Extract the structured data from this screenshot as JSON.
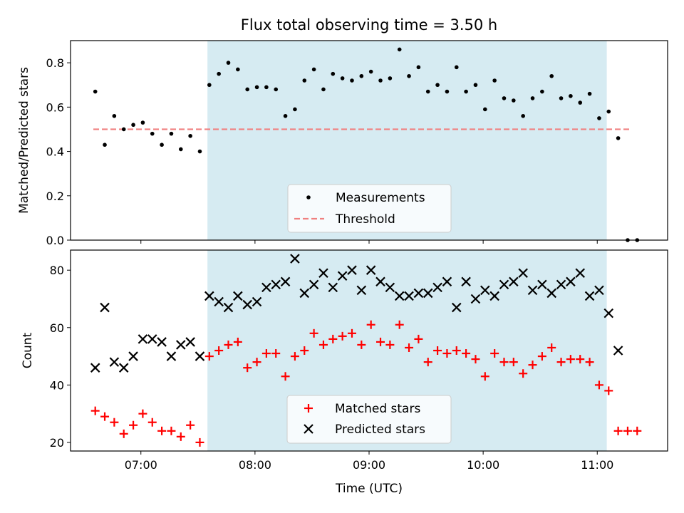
{
  "title": "Flux total observing time = 3.50 h",
  "chart_data": [
    {
      "type": "scatter",
      "panel": "top",
      "ylabel": "Matched/Predicted stars",
      "xlabel": "",
      "ylim": [
        0,
        0.9
      ],
      "yticks": [
        0.0,
        0.2,
        0.4,
        0.6,
        0.8
      ],
      "ytick_labels": [
        "0.0",
        "0.2",
        "0.4",
        "0.6",
        "0.8"
      ],
      "threshold": {
        "name": "Threshold",
        "y": 0.5,
        "x_from": "06:35",
        "x_to": "11:18",
        "color": "#f08080"
      },
      "shaded_span": {
        "from": "07:35",
        "to": "11:05",
        "color": "#add8e6"
      },
      "legend_position": "lower center",
      "series": [
        {
          "name": "Measurements",
          "color": "#000000",
          "x": [
            "06:36",
            "06:41",
            "06:46",
            "06:51",
            "06:56",
            "07:01",
            "07:06",
            "07:11",
            "07:16",
            "07:21",
            "07:26",
            "07:31",
            "07:36",
            "07:41",
            "07:46",
            "07:51",
            "07:56",
            "08:01",
            "08:06",
            "08:11",
            "08:16",
            "08:21",
            "08:26",
            "08:31",
            "08:36",
            "08:41",
            "08:46",
            "08:51",
            "08:56",
            "09:01",
            "09:06",
            "09:11",
            "09:16",
            "09:21",
            "09:26",
            "09:31",
            "09:36",
            "09:41",
            "09:46",
            "09:51",
            "09:56",
            "10:01",
            "10:06",
            "10:11",
            "10:16",
            "10:21",
            "10:26",
            "10:31",
            "10:36",
            "10:41",
            "10:46",
            "10:51",
            "10:56",
            "11:01",
            "11:06",
            "11:11",
            "11:16",
            "11:21"
          ],
          "y": [
            0.67,
            0.43,
            0.56,
            0.5,
            0.52,
            0.53,
            0.48,
            0.43,
            0.48,
            0.41,
            0.47,
            0.4,
            0.7,
            0.75,
            0.8,
            0.77,
            0.68,
            0.69,
            0.69,
            0.68,
            0.56,
            0.59,
            0.72,
            0.77,
            0.68,
            0.75,
            0.73,
            0.72,
            0.74,
            0.76,
            0.72,
            0.73,
            0.86,
            0.74,
            0.78,
            0.67,
            0.7,
            0.67,
            0.78,
            0.67,
            0.7,
            0.59,
            0.72,
            0.64,
            0.63,
            0.56,
            0.64,
            0.67,
            0.74,
            0.64,
            0.65,
            0.62,
            0.66,
            0.55,
            0.58,
            0.46,
            0.0,
            0.0
          ]
        }
      ]
    },
    {
      "type": "scatter",
      "panel": "bottom",
      "xlabel": "Time (UTC)",
      "ylabel": "Count",
      "ylim": [
        17,
        87
      ],
      "yticks": [
        20,
        40,
        60,
        80
      ],
      "ytick_labels": [
        "20",
        "40",
        "60",
        "80"
      ],
      "xlim": [
        "06:23",
        "11:37"
      ],
      "xticks": [
        "07:00",
        "08:00",
        "09:00",
        "10:00",
        "11:00"
      ],
      "xtick_labels": [
        "07:00",
        "08:00",
        "09:00",
        "10:00",
        "11:00"
      ],
      "shaded_span": {
        "from": "07:35",
        "to": "11:05",
        "color": "#add8e6"
      },
      "legend_position": "lower center",
      "series": [
        {
          "name": "Matched stars",
          "marker": "plus",
          "color": "#ff0000",
          "x": [
            "06:36",
            "06:41",
            "06:46",
            "06:51",
            "06:56",
            "07:01",
            "07:06",
            "07:11",
            "07:16",
            "07:21",
            "07:26",
            "07:31",
            "07:36",
            "07:41",
            "07:46",
            "07:51",
            "07:56",
            "08:01",
            "08:06",
            "08:11",
            "08:16",
            "08:21",
            "08:26",
            "08:31",
            "08:36",
            "08:41",
            "08:46",
            "08:51",
            "08:56",
            "09:01",
            "09:06",
            "09:11",
            "09:16",
            "09:21",
            "09:26",
            "09:31",
            "09:36",
            "09:41",
            "09:46",
            "09:51",
            "09:56",
            "10:01",
            "10:06",
            "10:11",
            "10:16",
            "10:21",
            "10:26",
            "10:31",
            "10:36",
            "10:41",
            "10:46",
            "10:51",
            "10:56",
            "11:01",
            "11:06",
            "11:11",
            "11:16",
            "11:21"
          ],
          "y": [
            31,
            29,
            27,
            23,
            26,
            30,
            27,
            24,
            24,
            22,
            26,
            20,
            50,
            52,
            54,
            55,
            46,
            48,
            51,
            51,
            43,
            50,
            52,
            58,
            54,
            56,
            57,
            58,
            54,
            61,
            55,
            54,
            61,
            53,
            56,
            48,
            52,
            51,
            52,
            51,
            49,
            43,
            51,
            48,
            48,
            44,
            47,
            50,
            53,
            48,
            49,
            49,
            48,
            40,
            38,
            24,
            24,
            24
          ]
        },
        {
          "name": "Predicted stars",
          "marker": "x",
          "color": "#000000",
          "x": [
            "06:36",
            "06:41",
            "06:46",
            "06:51",
            "06:56",
            "07:01",
            "07:06",
            "07:11",
            "07:16",
            "07:21",
            "07:26",
            "07:31",
            "07:36",
            "07:41",
            "07:46",
            "07:51",
            "07:56",
            "08:01",
            "08:06",
            "08:11",
            "08:16",
            "08:21",
            "08:26",
            "08:31",
            "08:36",
            "08:41",
            "08:46",
            "08:51",
            "08:56",
            "09:01",
            "09:06",
            "09:11",
            "09:16",
            "09:21",
            "09:26",
            "09:31",
            "09:36",
            "09:41",
            "09:46",
            "09:51",
            "09:56",
            "10:01",
            "10:06",
            "10:11",
            "10:16",
            "10:21",
            "10:26",
            "10:31",
            "10:36",
            "10:41",
            "10:46",
            "10:51",
            "10:56",
            "11:01",
            "11:06",
            "11:11"
          ],
          "y": [
            46,
            67,
            48,
            46,
            50,
            56,
            56,
            55,
            50,
            54,
            55,
            50,
            71,
            69,
            67,
            71,
            68,
            69,
            74,
            75,
            76,
            84,
            72,
            75,
            79,
            74,
            78,
            80,
            73,
            80,
            76,
            74,
            71,
            71,
            72,
            72,
            74,
            76,
            67,
            76,
            70,
            73,
            71,
            75,
            76,
            79,
            73,
            75,
            72,
            75,
            76,
            79,
            71,
            73,
            65,
            52
          ]
        }
      ]
    }
  ]
}
